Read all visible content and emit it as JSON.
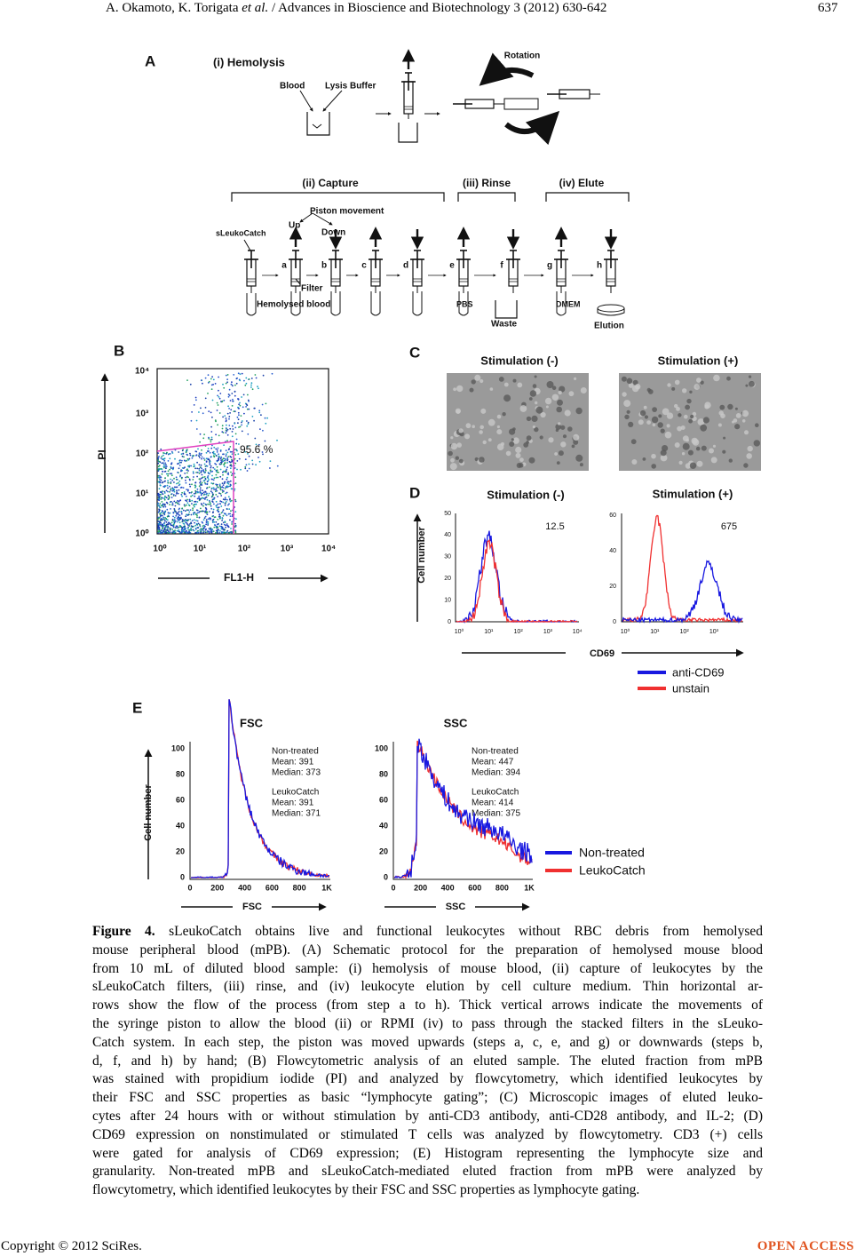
{
  "header": {
    "authors": "A. Okamoto, K. Torigata",
    "etal": "et al.",
    "journal": "/ Advances in Bioscience and Biotechnology 3 (2012) 630-642",
    "page": "637"
  },
  "figure": {
    "panel_a": {
      "label": "A",
      "hemolysis": "(i) Hemolysis",
      "blood": "Blood",
      "lysis_buffer": "Lysis Buffer",
      "rotation": "Rotation",
      "capture": "(ii) Capture",
      "rinse": "(iii) Rinse",
      "elute": "(iv) Elute",
      "piston_movement": "Piston movement",
      "up": "Up",
      "down": "Down",
      "device": "sLeukoCatch",
      "steps": [
        "a",
        "b",
        "c",
        "d",
        "e",
        "f",
        "g",
        "h"
      ],
      "filter": "Filter",
      "hemolysed_blood": "Hemolysed blood",
      "pbs": "PBS",
      "waste": "Waste",
      "dmem": "DMEM",
      "elution": "Elution"
    },
    "panel_b": {
      "label": "B",
      "y_label": "PI",
      "x_label": "FL1-H",
      "yticks": [
        "10⁰",
        "10¹",
        "10²",
        "10³",
        "10⁴"
      ],
      "xticks": [
        "10⁰",
        "10¹",
        "10²",
        "10³",
        "10⁴"
      ],
      "gate": "95.6 %"
    },
    "panel_c": {
      "label": "C",
      "titles": [
        "Stimulation (-)",
        "Stimulation (+)"
      ]
    },
    "panel_d": {
      "label": "D",
      "titles": [
        "Stimulation (-)",
        "Stimulation (+)"
      ],
      "y_label": "Cell number",
      "x_label": "CD69",
      "left_yticks": [
        0,
        10,
        20,
        30,
        40,
        50
      ],
      "right_yticks": [
        0,
        20,
        40,
        60
      ],
      "left_xticks": [
        "10⁰",
        "10¹",
        "10²",
        "10³",
        "10⁴"
      ],
      "right_xticks": [
        "10⁰",
        "10¹",
        "10²",
        "10³"
      ],
      "values": [
        "12.5",
        "675"
      ],
      "legend": [
        "anti-CD69",
        "unstain"
      ]
    },
    "panel_e": {
      "label": "E",
      "titles": [
        "FSC",
        "SSC"
      ],
      "y_label": "Cell number",
      "x_labels": [
        "FSC",
        "SSC"
      ],
      "yticks": [
        0,
        20,
        40,
        60,
        80,
        100
      ],
      "xticks": [
        0,
        200,
        400,
        600,
        800,
        "1K"
      ],
      "stats": [
        [
          "Non-treated",
          "Mean: 391",
          "Median: 373",
          "LeukoCatch",
          "Mean: 391",
          "Median: 371"
        ],
        [
          "Non-treated",
          "Mean: 447",
          "Median: 394",
          "LeukoCatch",
          "Mean: 414",
          "Median: 375"
        ]
      ],
      "legend": [
        "Non-treated",
        "LeukoCatch"
      ]
    }
  },
  "caption": {
    "label": "Figure 4.",
    "lines": [
      " sLeukoCatch obtains live and functional leukocytes without RBC debris from hemolysed",
      "mouse peripheral blood (mPB). (A) Schematic protocol for the preparation of hemolysed mouse blood",
      "from 10 mL of diluted blood sample: (i) hemolysis of mouse blood, (ii) capture of leukocytes by the",
      "sLeukoCatch filters, (iii) rinse, and (iv) leukocyte elution by cell culture medium. Thin horizontal ar-",
      "rows show the flow of the process (from step a to h). Thick vertical arrows indicate the movements of",
      "the syringe piston to allow the blood (ii) or RPMI (iv) to pass through the stacked filters in the sLeuko-",
      "Catch system. In each step, the piston was moved upwards (steps a, c, e, and g) or downwards (steps b,",
      "d, f, and h) by hand; (B) Flowcytometric analysis of an eluted sample. The eluted fraction from mPB",
      "was stained with propidium iodide (PI) and analyzed by flowcytometry, which identified leukocytes by",
      "their FSC and SSC properties as basic “lymphocyte gating”; (C) Microscopic images of eluted leuko-",
      "cytes after 24 hours with or without stimulation by anti-CD3 antibody, anti-CD28 antibody, and IL-2; (D)",
      "CD69 expression on nonstimulated or stimulated T cells was analyzed by flowcytometry. CD3 (+) cells",
      "were gated for analysis of CD69 expression; (E) Histogram representing the lymphocyte size and",
      "granularity. Non-treated mPB and sLeukoCatch-mediated eluted fraction from mPB were analyzed by",
      "flowcytometry, which identified leukocytes by their FSC and SSC properties as lymphocyte gating."
    ]
  },
  "footer": {
    "copyright": "Copyright © 2012 SciRes.",
    "access": "OPEN ACCESS"
  }
}
